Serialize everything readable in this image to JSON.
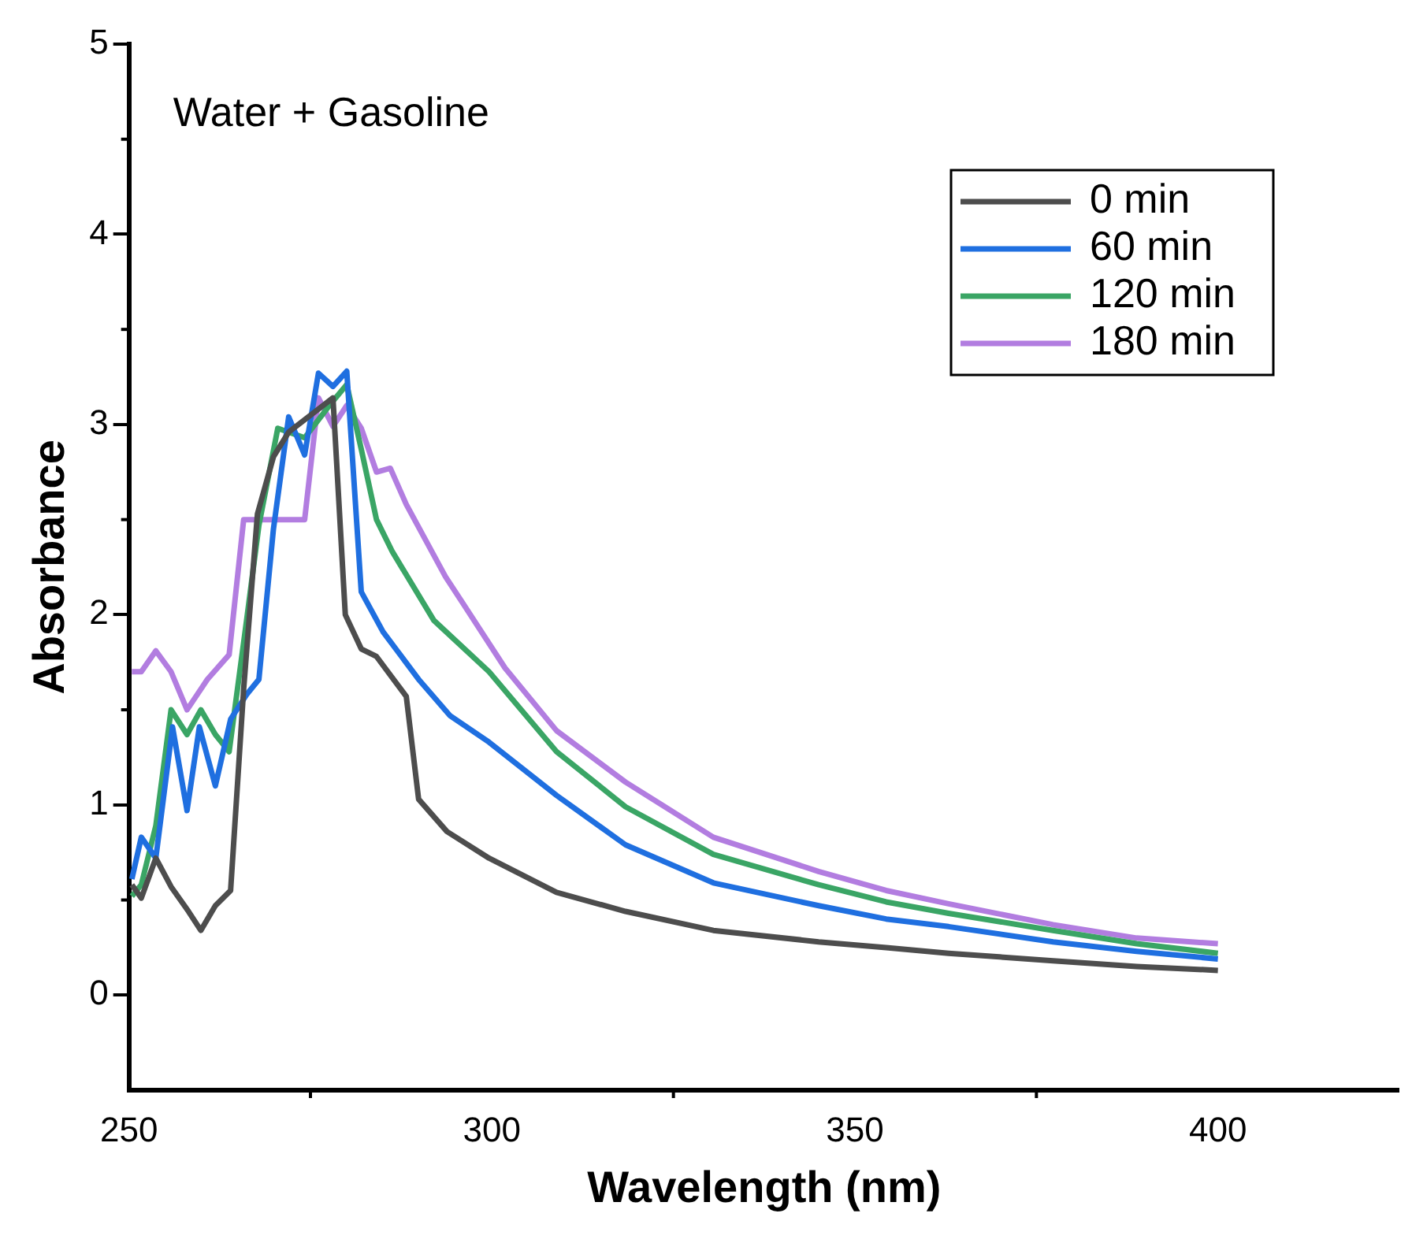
{
  "chart_data": {
    "type": "line",
    "xlabel": "Wavelength (nm)",
    "ylabel": "Absorbance",
    "annotations": [
      "Water + Gasoline"
    ],
    "xlim": [
      250,
      425
    ],
    "xticks": [
      250,
      300,
      350,
      400
    ],
    "ylim": [
      -0.5,
      5
    ],
    "yticks": [
      0,
      1,
      2,
      3,
      4,
      5
    ],
    "grid": false,
    "legend": "top right",
    "marker": "none",
    "line_style": "solid",
    "series": [
      {
        "name": "0 min",
        "color": "#4d4d4d",
        "x": [
          250.4,
          251.7,
          253.7,
          255.8,
          258.2,
          259.9,
          261.9,
          264.0,
          265.8,
          267.7,
          269.9,
          272.0,
          278.1,
          279.8,
          282,
          284.1,
          288.2,
          289.9,
          293.8,
          299.6,
          308.9,
          318.4,
          330.5,
          345,
          354.3,
          362.9,
          377.3,
          388.8,
          400
        ],
        "values": [
          0.58,
          0.51,
          0.72,
          0.57,
          0.44,
          0.34,
          0.47,
          0.55,
          1.61,
          2.53,
          2.83,
          2.96,
          3.14,
          2.0,
          1.82,
          1.78,
          1.57,
          1.03,
          0.86,
          0.72,
          0.54,
          0.44,
          0.34,
          0.28,
          0.25,
          0.22,
          0.18,
          0.15,
          0.13
        ]
      },
      {
        "name": "60 min",
        "color": "#1f6fe0",
        "x": [
          250.4,
          251.7,
          253.7,
          256,
          258,
          259.7,
          261.9,
          264,
          266.2,
          267.9,
          269.9,
          272,
          274.2,
          276.1,
          278.1,
          280,
          282,
          285,
          289.9,
          294.2,
          299.6,
          308.9,
          318.4,
          330.5,
          345,
          354.3,
          362.9,
          377.3,
          388.8,
          400
        ],
        "values": [
          0.61,
          0.83,
          0.72,
          1.41,
          0.97,
          1.41,
          1.1,
          1.45,
          1.58,
          1.66,
          2.45,
          3.04,
          2.84,
          3.27,
          3.2,
          3.28,
          2.12,
          1.91,
          1.66,
          1.47,
          1.33,
          1.05,
          0.79,
          0.59,
          0.47,
          0.4,
          0.36,
          0.28,
          0.23,
          0.19
        ]
      },
      {
        "name": "120 min",
        "color": "#3aa565",
        "x": [
          250.4,
          251.7,
          253.7,
          255.8,
          258,
          259.9,
          261.9,
          263.8,
          266.2,
          267.9,
          270.5,
          274.2,
          277.6,
          280,
          282,
          284.1,
          286.3,
          292,
          299.6,
          308.9,
          318.4,
          330.5,
          345,
          354.3,
          362.9,
          377.3,
          388.8,
          400
        ],
        "values": [
          0.52,
          0.58,
          0.89,
          1.5,
          1.37,
          1.5,
          1.37,
          1.28,
          1.97,
          2.47,
          2.98,
          2.93,
          3.1,
          3.21,
          2.87,
          2.5,
          2.33,
          1.97,
          1.7,
          1.28,
          0.99,
          0.74,
          0.58,
          0.49,
          0.43,
          0.34,
          0.27,
          0.22
        ]
      },
      {
        "name": "180 min",
        "color": "#b27de0",
        "x": [
          250.4,
          251.7,
          253.7,
          255.8,
          258,
          260.8,
          263.8,
          265.8,
          274.2,
          276.1,
          278.1,
          280,
          282,
          284.1,
          286,
          288.2,
          293.6,
          296,
          301.8,
          308.9,
          318.4,
          330.5,
          345,
          354.3,
          362.9,
          377.3,
          388.8,
          400
        ],
        "values": [
          1.7,
          1.7,
          1.81,
          1.7,
          1.5,
          1.66,
          1.79,
          2.5,
          2.5,
          3.14,
          2.99,
          3.1,
          2.98,
          2.75,
          2.77,
          2.58,
          2.2,
          2.06,
          1.72,
          1.39,
          1.12,
          0.83,
          0.65,
          0.55,
          0.48,
          0.37,
          0.3,
          0.27
        ]
      }
    ]
  }
}
